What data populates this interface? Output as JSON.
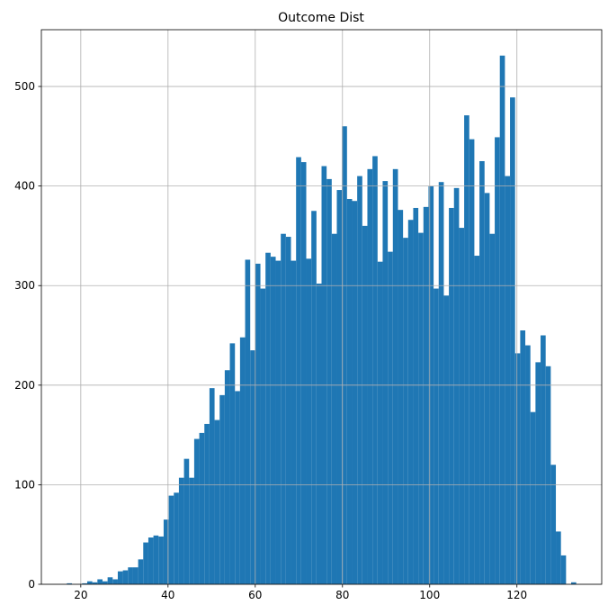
{
  "chart_data": {
    "type": "histogram",
    "title": "Outcome Dist",
    "bins": [
      16.8,
      17.968,
      19.136,
      20.304,
      21.472,
      22.64,
      23.808,
      24.976,
      26.144,
      27.312,
      28.48,
      29.648,
      30.816,
      31.984,
      33.152,
      34.32,
      35.488,
      36.656,
      37.824,
      38.992,
      40.16,
      41.328,
      42.496,
      43.664,
      44.832,
      46.0,
      47.168,
      48.336,
      49.504,
      50.672,
      51.84,
      53.008,
      54.176,
      55.344,
      56.512,
      57.68,
      58.848,
      60.016,
      61.184,
      62.352,
      63.52,
      64.688,
      65.856,
      67.024,
      68.192,
      69.36,
      70.528,
      71.696,
      72.864,
      74.032,
      75.2,
      76.368,
      77.536,
      78.704,
      79.872,
      81.04,
      82.208,
      83.376,
      84.544,
      85.712,
      86.88,
      88.048,
      89.216,
      90.384,
      91.552,
      92.72,
      93.888,
      95.056,
      96.224,
      97.392,
      98.56,
      99.728,
      100.896,
      102.064,
      103.232,
      104.4,
      105.568,
      106.736,
      107.904,
      109.072,
      110.24,
      111.408,
      112.576,
      113.744,
      114.912,
      116.08,
      117.248,
      118.416,
      119.584,
      120.752,
      121.92,
      123.088,
      124.256,
      125.424,
      126.592,
      127.76,
      128.928,
      130.096,
      131.264,
      132.432,
      133.6
    ],
    "values": [
      1,
      0,
      0,
      1,
      3,
      2,
      5,
      3,
      7,
      5,
      13,
      14,
      17,
      17,
      25,
      42,
      47,
      49,
      48,
      65,
      89,
      92,
      107,
      126,
      107,
      146,
      152,
      161,
      197,
      165,
      190,
      215,
      242,
      194,
      248,
      326,
      235,
      322,
      297,
      333,
      329,
      325,
      352,
      349,
      325,
      429,
      424,
      327,
      375,
      302,
      420,
      407,
      352,
      396,
      460,
      387,
      385,
      410,
      360,
      417,
      430,
      324,
      405,
      334,
      417,
      376,
      348,
      366,
      378,
      353,
      379,
      400,
      297,
      404,
      290,
      378,
      398,
      358,
      471,
      447,
      330,
      425,
      393,
      352,
      449,
      531,
      410,
      489,
      232,
      255,
      240,
      173,
      223,
      250,
      219,
      120,
      53,
      29,
      0,
      2
    ],
    "color": "#1f77b4",
    "xlim": [
      10.96,
      139.44
    ],
    "ylim": [
      0,
      557
    ],
    "xticks": [
      20,
      40,
      60,
      80,
      100,
      120
    ],
    "yticks": [
      0,
      100,
      200,
      300,
      400,
      500
    ],
    "grid": true
  }
}
